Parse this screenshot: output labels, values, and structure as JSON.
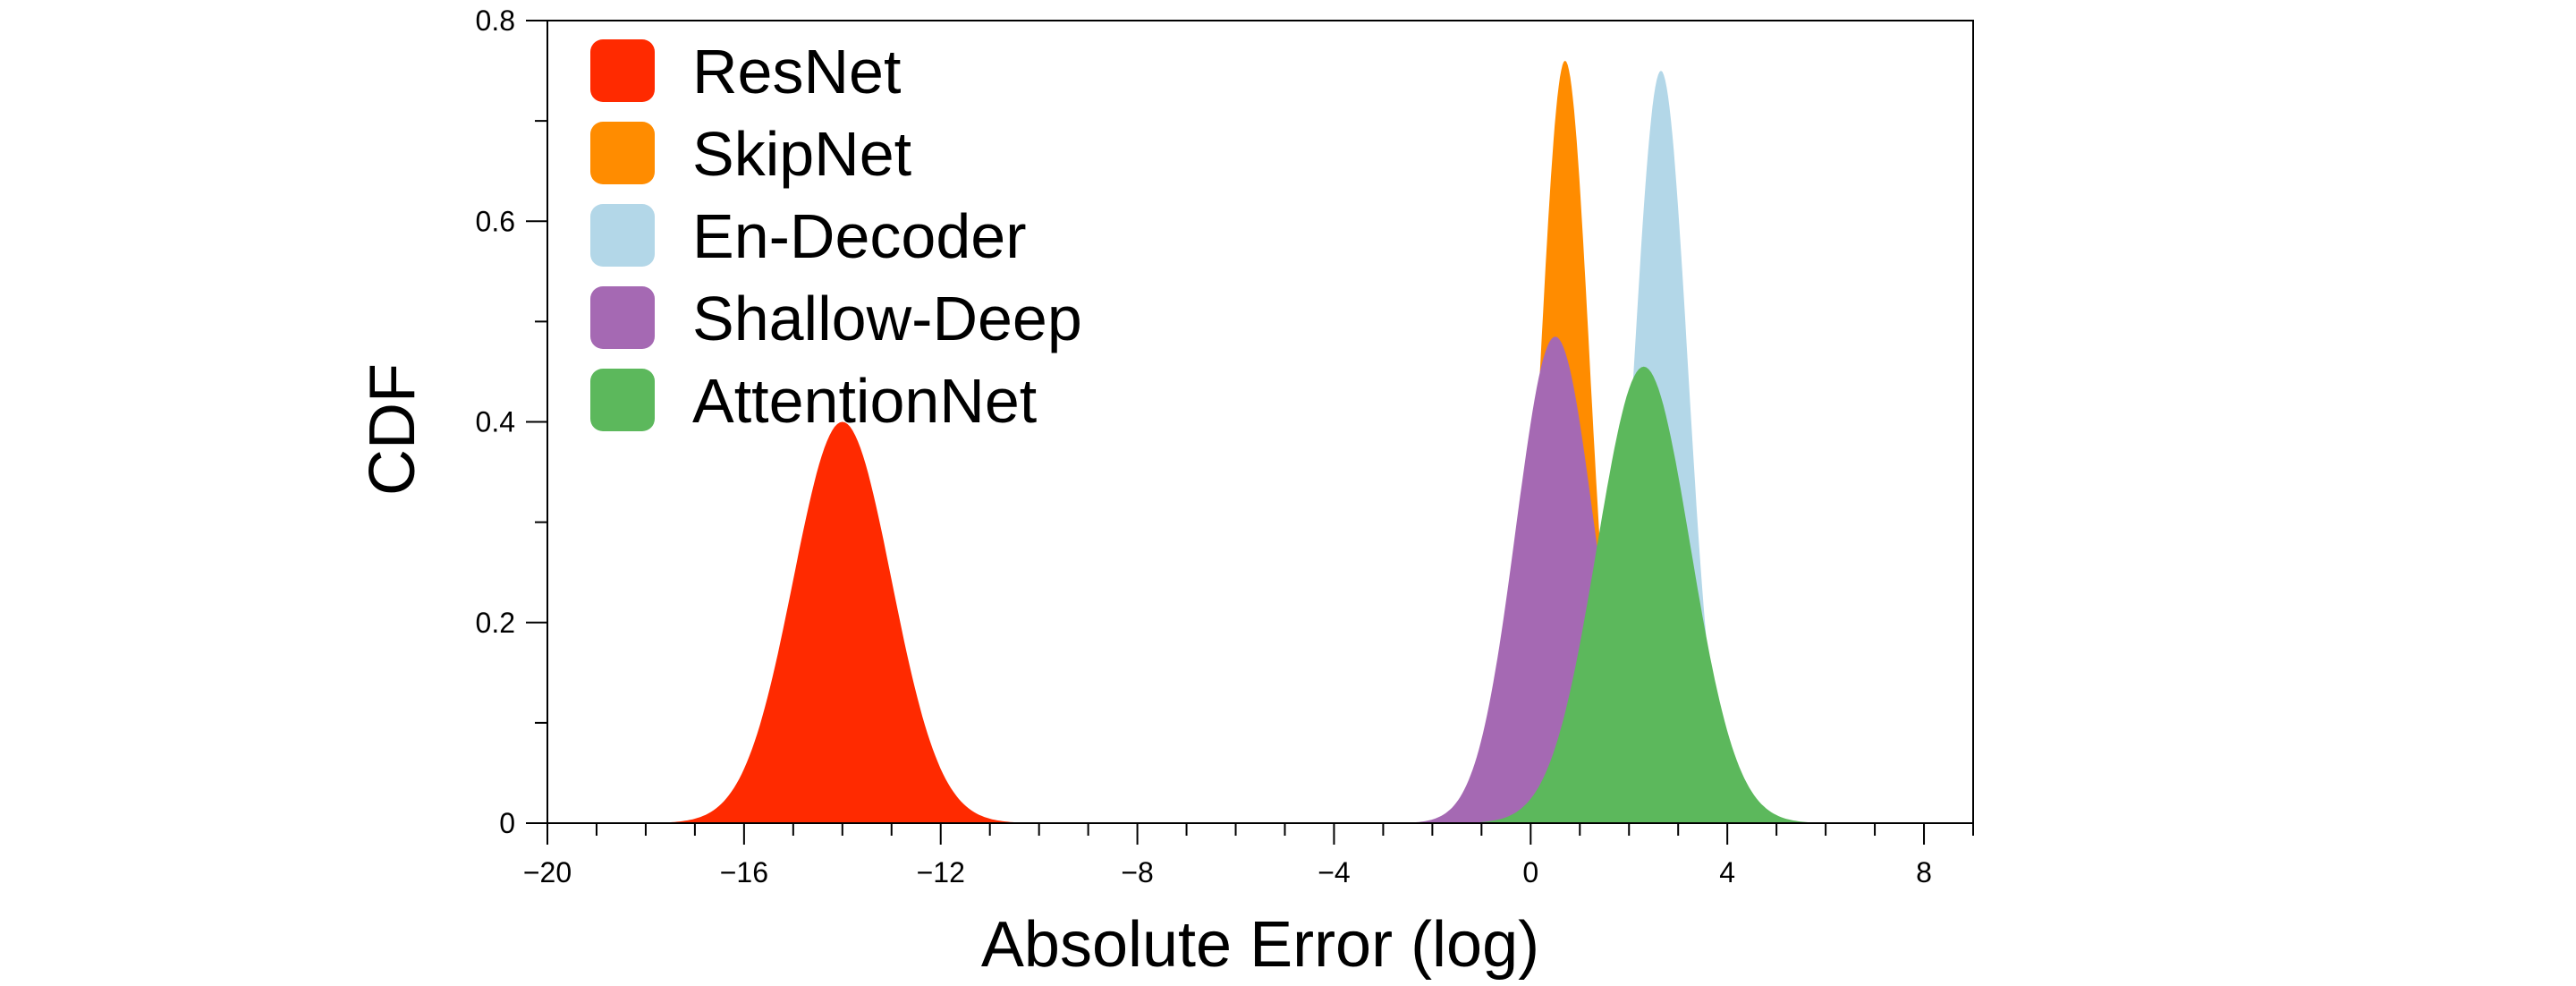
{
  "chart_data": {
    "type": "area",
    "title": "",
    "xlabel": "Absolute Error (log)",
    "ylabel": "CDF",
    "xlim": [
      -20,
      9
    ],
    "ylim": [
      0,
      0.8
    ],
    "x_ticks": [
      -20,
      -16,
      -12,
      -8,
      -4,
      0,
      4,
      8
    ],
    "x_tick_labels": [
      "−20",
      "−16",
      "−12",
      "−8",
      "−4",
      "0",
      "4",
      "8"
    ],
    "y_ticks": [
      0,
      0.2,
      0.4,
      0.6,
      0.8
    ],
    "y_tick_labels": [
      "0",
      "0.2",
      "0.4",
      "0.6",
      "0.8"
    ],
    "grid": false,
    "legend_position": "top-left",
    "series": [
      {
        "name": "ResNet",
        "color": "#ff2a00",
        "peak_x": -14.0,
        "peak_y": 0.4,
        "spread": 1.0
      },
      {
        "name": "SkipNet",
        "color": "#ff8c00",
        "peak_x": 0.7,
        "peak_y": 0.76,
        "spread": 0.5
      },
      {
        "name": "En-Decoder",
        "color": "#b3d7e8",
        "peak_x": 2.65,
        "peak_y": 0.75,
        "spread": 0.55
      },
      {
        "name": "Shallow-Deep",
        "color": "#a569b3",
        "peak_x": 0.5,
        "peak_y": 0.485,
        "spread": 0.8
      },
      {
        "name": "AttentionNet",
        "color": "#5cb85c",
        "peak_x": 2.3,
        "peak_y": 0.455,
        "spread": 0.95
      }
    ]
  }
}
